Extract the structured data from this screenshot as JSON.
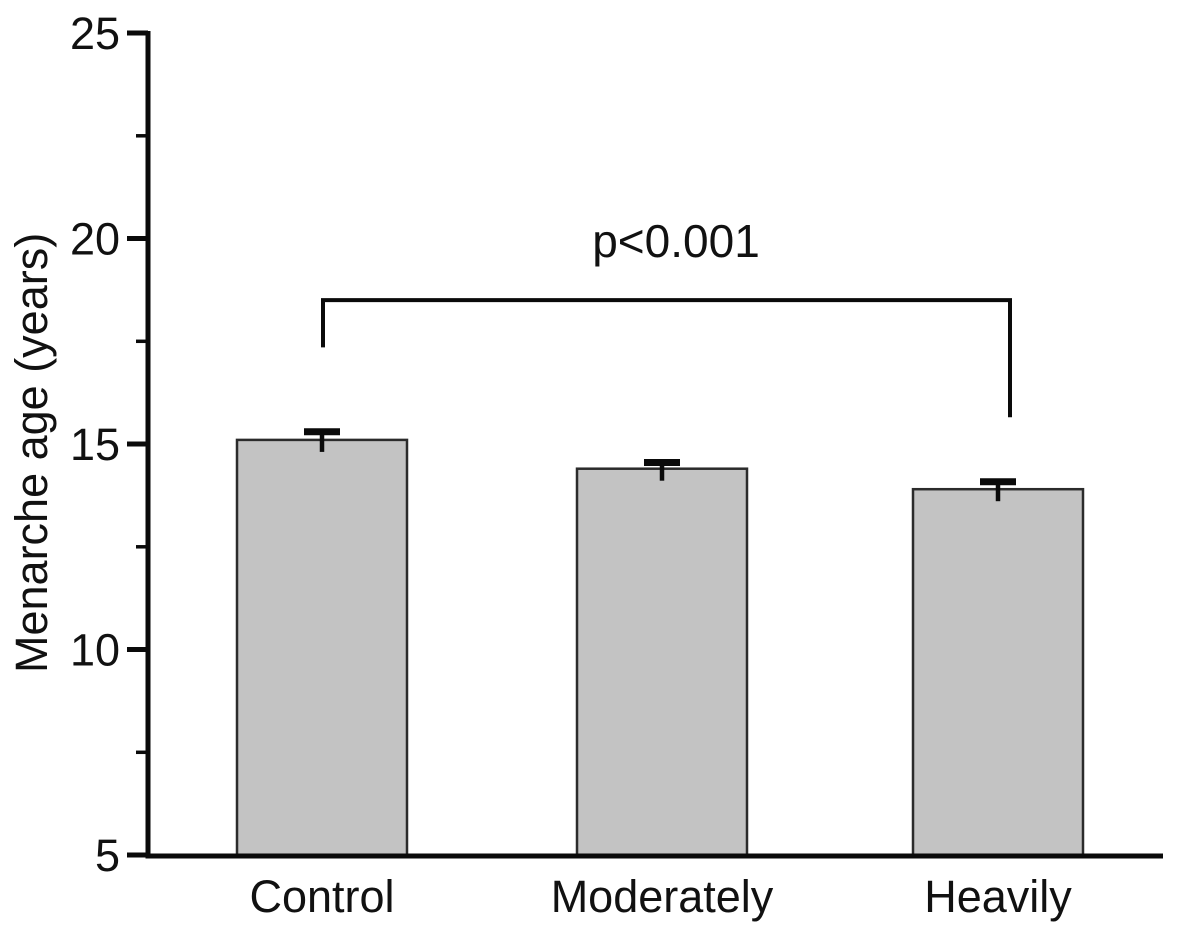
{
  "chart_data": {
    "type": "bar",
    "title": "",
    "xlabel": "",
    "ylabel": "Menarche age (years)",
    "categories": [
      "Control",
      "Moderately",
      "Heavily"
    ],
    "values": [
      15.1,
      14.4,
      13.9
    ],
    "errors": [
      0.2,
      0.15,
      0.18
    ],
    "ylim": [
      5,
      25
    ],
    "yticks": [
      5,
      10,
      15,
      20,
      25
    ],
    "yticks_minor": [
      7.5,
      12.5,
      17.5,
      22.5
    ],
    "grid": false,
    "legend_position": "none",
    "bar_fill": "#c3c3c3",
    "bar_edge": "#2b2b2b",
    "axis_color": "#0a0a0a",
    "background": "#ffffff",
    "annotation": {
      "text": "p<0.001",
      "compare": [
        "Control",
        "Heavily"
      ],
      "bracket_top_value": 18.5,
      "left_drop_value": 17.35,
      "right_drop_value": 15.65
    }
  }
}
